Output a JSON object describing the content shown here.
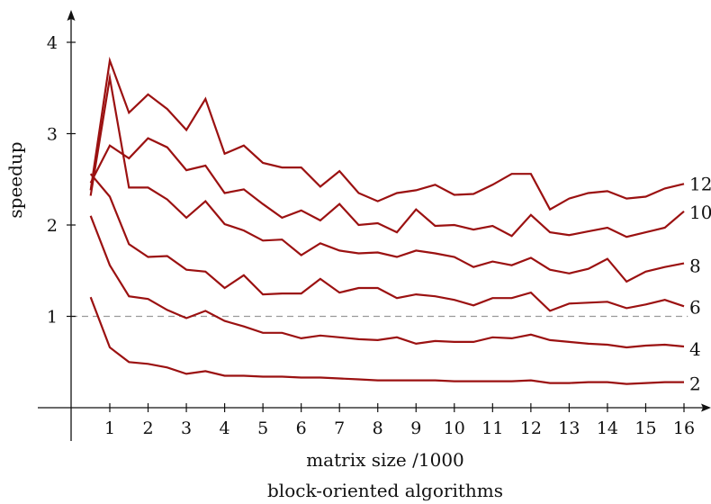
{
  "chart_data": {
    "type": "line",
    "title": "",
    "subtitle": "block-oriented algorithms",
    "xlabel": "matrix size /1000",
    "ylabel": "speedup",
    "xlim": [
      -0.8,
      16.5
    ],
    "ylim": [
      -0.1,
      4.35
    ],
    "xticks": [
      1,
      2,
      3,
      4,
      5,
      6,
      7,
      8,
      9,
      10,
      11,
      12,
      13,
      14,
      15,
      16
    ],
    "yticks": [
      1,
      2,
      3,
      4
    ],
    "reference_line": 1,
    "line_color": "#9b1111",
    "reference_color": "#999999",
    "x": [
      0.5,
      1,
      1.5,
      2,
      2.5,
      3,
      3.5,
      4,
      4.5,
      5,
      5.5,
      6,
      6.5,
      7,
      7.5,
      8,
      8.5,
      9,
      9.5,
      10,
      10.5,
      11,
      11.5,
      12,
      12.5,
      13,
      13.5,
      14,
      14.5,
      15,
      15.5,
      16
    ],
    "series": [
      {
        "name": "2",
        "values": [
          1.21,
          0.66,
          0.5,
          0.48,
          0.44,
          0.37,
          0.4,
          0.35,
          0.35,
          0.34,
          0.34,
          0.33,
          0.33,
          0.32,
          0.31,
          0.3,
          0.3,
          0.3,
          0.3,
          0.29,
          0.29,
          0.29,
          0.29,
          0.3,
          0.27,
          0.27,
          0.28,
          0.28,
          0.26,
          0.27,
          0.28,
          0.28
        ]
      },
      {
        "name": "4",
        "values": [
          2.1,
          1.56,
          1.22,
          1.19,
          1.07,
          0.98,
          1.06,
          0.95,
          0.89,
          0.82,
          0.82,
          0.76,
          0.79,
          0.77,
          0.75,
          0.74,
          0.77,
          0.7,
          0.73,
          0.72,
          0.72,
          0.77,
          0.76,
          0.8,
          0.74,
          0.72,
          0.7,
          0.69,
          0.66,
          0.68,
          0.69,
          0.67
        ]
      },
      {
        "name": "6",
        "values": [
          2.56,
          2.31,
          1.79,
          1.65,
          1.66,
          1.51,
          1.49,
          1.31,
          1.45,
          1.24,
          1.25,
          1.25,
          1.41,
          1.26,
          1.31,
          1.31,
          1.2,
          1.24,
          1.22,
          1.18,
          1.12,
          1.2,
          1.2,
          1.26,
          1.06,
          1.14,
          1.15,
          1.16,
          1.09,
          1.13,
          1.18,
          1.11
        ]
      },
      {
        "name": "8",
        "values": [
          2.32,
          3.61,
          2.41,
          2.41,
          2.28,
          2.08,
          2.26,
          2.01,
          1.94,
          1.83,
          1.84,
          1.67,
          1.8,
          1.72,
          1.69,
          1.7,
          1.65,
          1.72,
          1.69,
          1.65,
          1.54,
          1.6,
          1.56,
          1.64,
          1.51,
          1.47,
          1.52,
          1.63,
          1.38,
          1.49,
          1.54,
          1.58
        ]
      },
      {
        "name": "10",
        "values": [
          2.46,
          2.87,
          2.73,
          2.95,
          2.85,
          2.6,
          2.65,
          2.35,
          2.39,
          2.23,
          2.08,
          2.16,
          2.05,
          2.23,
          2.0,
          2.02,
          1.92,
          2.17,
          1.99,
          2.0,
          1.95,
          1.99,
          1.88,
          2.11,
          1.92,
          1.89,
          1.93,
          1.97,
          1.87,
          1.92,
          1.97,
          2.15
        ]
      },
      {
        "name": "12",
        "values": [
          2.38,
          3.8,
          3.23,
          3.43,
          3.27,
          3.04,
          3.38,
          2.78,
          2.87,
          2.68,
          2.63,
          2.63,
          2.42,
          2.59,
          2.35,
          2.26,
          2.35,
          2.38,
          2.44,
          2.33,
          2.34,
          2.44,
          2.56,
          2.56,
          2.17,
          2.29,
          2.35,
          2.37,
          2.29,
          2.31,
          2.4,
          2.45
        ]
      }
    ]
  }
}
